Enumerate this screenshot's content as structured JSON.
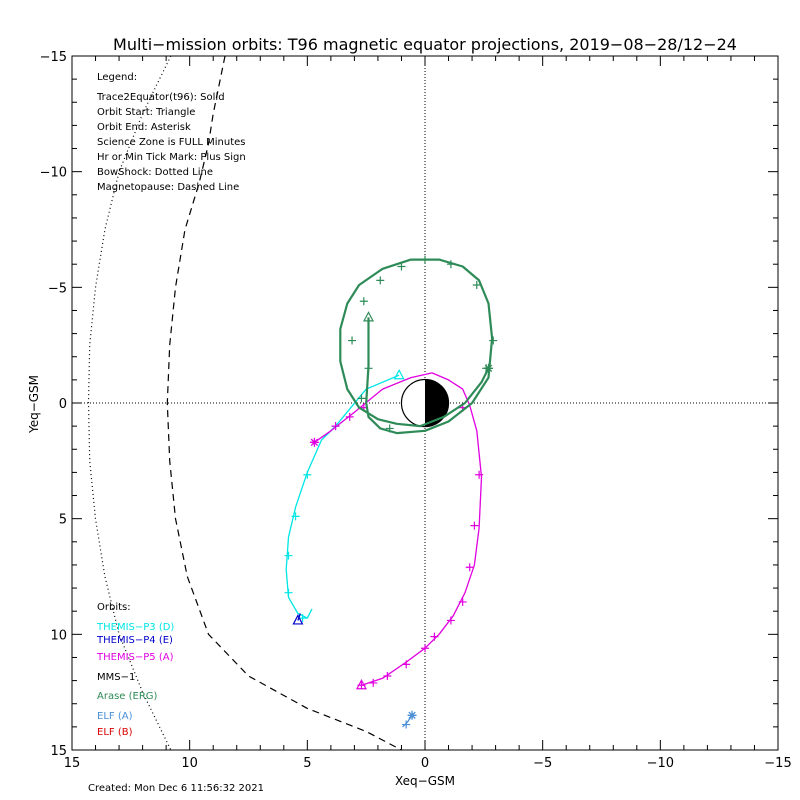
{
  "chart_data": {
    "type": "line",
    "title": "Multi−mission orbits: T96 magnetic equator projections, 2019−08−28/12−24",
    "xlabel": "Xeq−GSM",
    "ylabel": "Yeq−GSM",
    "xlim": [
      15,
      -15
    ],
    "ylim": [
      -15,
      15
    ],
    "x_ticks": [
      "15",
      "10",
      "5",
      "0",
      "−5",
      "−10",
      "−15"
    ],
    "y_ticks": [
      "−15",
      "−10",
      "−5",
      "0",
      "5",
      "10",
      "15"
    ],
    "grid": false,
    "legend_header": "Legend:",
    "legend_lines": [
      "Trace2Equator(t96): Solid",
      "Orbit Start: Triangle",
      "Orbit End: Asterisk",
      "Science Zone is FULL Minutes",
      "Hr or Min Tick Mark: Plus Sign",
      "BowShock: Dotted Line",
      "Magnetopause: Dashed Line"
    ],
    "orbits_header": "Orbits:",
    "created": "Created: Mon Dec  6 11:56:32 2021",
    "boundaries": {
      "bow_shock": [
        [
          10.8,
          -15
        ],
        [
          12,
          -12.5
        ],
        [
          13,
          -10
        ],
        [
          13.6,
          -7.5
        ],
        [
          14,
          -5
        ],
        [
          14.25,
          -2.5
        ],
        [
          14.3,
          0
        ],
        [
          14.25,
          2.5
        ],
        [
          14,
          5
        ],
        [
          13.6,
          7.5
        ],
        [
          13,
          10
        ],
        [
          12,
          12.5
        ],
        [
          10.8,
          15
        ]
      ],
      "magnetopause": [
        [
          8.5,
          -15
        ],
        [
          9,
          -12.5
        ],
        [
          9.2,
          -11.2
        ],
        [
          9.6,
          -9.5
        ],
        [
          10.2,
          -7.5
        ],
        [
          10.6,
          -5
        ],
        [
          10.85,
          -2.5
        ],
        [
          10.95,
          0
        ],
        [
          10.85,
          2.5
        ],
        [
          10.6,
          5
        ],
        [
          10.1,
          7.5
        ],
        [
          9.2,
          10
        ],
        [
          7.5,
          11.8
        ],
        [
          5,
          13.2
        ],
        [
          2.5,
          14.2
        ],
        [
          1,
          15
        ]
      ]
    },
    "earth": {
      "radius": 1
    },
    "series": [
      {
        "name": "THEMIS−P3 (D)",
        "color": "#00e5e5",
        "points": [
          [
            1.1,
            -1.2
          ],
          [
            2.5,
            -0.6
          ],
          [
            3.8,
            1.0
          ],
          [
            4.4,
            1.6
          ],
          [
            5.0,
            3.0
          ],
          [
            5.5,
            4.5
          ],
          [
            5.8,
            5.8
          ],
          [
            5.9,
            7.2
          ],
          [
            5.8,
            8.4
          ],
          [
            5.4,
            9.1
          ],
          [
            5.0,
            9.3
          ],
          [
            4.8,
            8.9
          ]
        ],
        "ticks": [
          [
            3.8,
            1.0
          ],
          [
            5.0,
            3.1
          ],
          [
            5.5,
            4.9
          ],
          [
            5.8,
            6.6
          ],
          [
            5.8,
            8.2
          ],
          [
            5.2,
            9.3
          ]
        ],
        "start": [
          1.1,
          -1.2
        ],
        "end": null
      },
      {
        "name": "THEMIS−P4 (E)",
        "color": "#0000cc",
        "points": [
          [
            5.4,
            9.4
          ],
          [
            5.3,
            9.1
          ]
        ],
        "ticks": [],
        "start": [
          5.4,
          9.4
        ],
        "end": null
      },
      {
        "name": "THEMIS−P5 (A)",
        "color": "#e000e0",
        "points": [
          [
            2.7,
            12.2
          ],
          [
            1.8,
            11.9
          ],
          [
            0.8,
            11.2
          ],
          [
            0,
            10.6
          ],
          [
            -0.6,
            10.0
          ],
          [
            -1.2,
            9.2
          ],
          [
            -1.7,
            8.2
          ],
          [
            -2.1,
            7.0
          ],
          [
            -2.3,
            5.4
          ],
          [
            -2.4,
            3.2
          ],
          [
            -2.2,
            1.2
          ],
          [
            -1.9,
            0.1
          ],
          [
            -1.6,
            -0.6
          ],
          [
            -1.0,
            -1.0
          ],
          [
            -0.3,
            -1.3
          ],
          [
            0.6,
            -1.1
          ],
          [
            1.8,
            -0.6
          ],
          [
            3.0,
            0.4
          ],
          [
            4.0,
            1.2
          ],
          [
            4.7,
            1.7
          ]
        ],
        "ticks": [
          [
            2.7,
            12.2
          ],
          [
            2.2,
            12.1
          ],
          [
            1.6,
            11.8
          ],
          [
            0.8,
            11.3
          ],
          [
            0,
            10.6
          ],
          [
            -0.4,
            10.1
          ],
          [
            -1.1,
            9.4
          ],
          [
            -1.6,
            8.6
          ],
          [
            -1.9,
            7.1
          ],
          [
            -2.1,
            5.3
          ],
          [
            -2.3,
            3.1
          ],
          [
            -1.6,
            0.2
          ],
          [
            2.6,
            0.2
          ],
          [
            3.2,
            0.6
          ],
          [
            3.8,
            1.0
          ]
        ],
        "start": [
          2.7,
          12.2
        ],
        "end": [
          4.7,
          1.7
        ]
      },
      {
        "name": "MMS−1",
        "color": "#000000",
        "points": [],
        "ticks": [],
        "start": null,
        "end": null
      },
      {
        "name": "Arase (ERG)",
        "color": "#2e8b57",
        "points": [
          [
            2.4,
            -3.7
          ],
          [
            2.4,
            -2.8
          ],
          [
            2.4,
            -1.6
          ],
          [
            2.5,
            0
          ],
          [
            2.4,
            0.6
          ],
          [
            1.9,
            1.1
          ],
          [
            1.2,
            1.3
          ],
          [
            0,
            1.2
          ],
          [
            -1.0,
            0.8
          ],
          [
            -2.0,
            0
          ],
          [
            -2.7,
            -1.1
          ],
          [
            -2.85,
            -2.8
          ],
          [
            -2.7,
            -4.3
          ],
          [
            -2.3,
            -5.3
          ],
          [
            -1.6,
            -5.9
          ],
          [
            -0.6,
            -6.2
          ],
          [
            0.6,
            -6.2
          ],
          [
            1.8,
            -5.8
          ],
          [
            2.8,
            -5.1
          ],
          [
            3.3,
            -4.3
          ],
          [
            3.6,
            -3.2
          ],
          [
            3.6,
            -1.8
          ],
          [
            3.3,
            -0.6
          ],
          [
            2.8,
            0.2
          ],
          [
            2.0,
            0.7
          ],
          [
            1.2,
            0.9
          ],
          [
            0.2,
            1.0
          ],
          [
            -0.8,
            0.6
          ],
          [
            -1.7,
            0
          ],
          [
            -2.4,
            -0.9
          ],
          [
            -2.7,
            -1.5
          ]
        ],
        "ticks": [
          [
            2.4,
            -1.5
          ],
          [
            3.1,
            -2.7
          ],
          [
            2.6,
            -4.4
          ],
          [
            1.9,
            -5.3
          ],
          [
            1.0,
            -5.9
          ],
          [
            0,
            -6.2
          ],
          [
            -1.1,
            -6.0
          ],
          [
            -2.2,
            -5.1
          ],
          [
            -2.9,
            -2.7
          ],
          [
            -2.6,
            -1.5
          ],
          [
            1.5,
            1.1
          ],
          [
            2.7,
            -0.2
          ]
        ],
        "start": [
          2.4,
          -3.7
        ],
        "end": [
          -2.7,
          -1.5
        ]
      },
      {
        "name": "ELF (A)",
        "color": "#4a8fd6",
        "points": [
          [
            0.55,
            13.5
          ],
          [
            0.75,
            13.8
          ],
          [
            0.95,
            14.0
          ]
        ],
        "ticks": [
          [
            0.8,
            13.9
          ]
        ],
        "start": null,
        "end": [
          0.55,
          13.5
        ]
      },
      {
        "name": "ELF (B)",
        "color": "#dd0000",
        "points": [],
        "ticks": [],
        "start": null,
        "end": null
      }
    ]
  }
}
